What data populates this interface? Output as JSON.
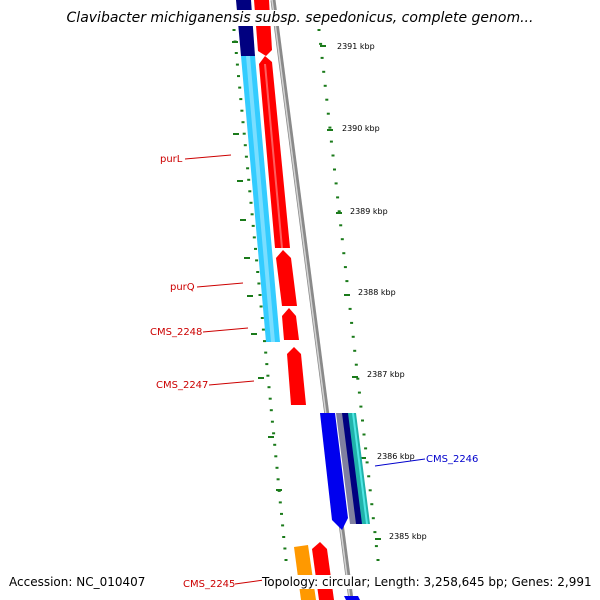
{
  "title": "Clavibacter michiganensis subsp. sepedonicus, complete genom...",
  "footer": {
    "accession": "Accession: NC_010407",
    "summary": "Topology: circular; Length: 3,258,645 bp; Genes: 2,991"
  },
  "ticks": [
    "2391 kbp",
    "2390 kbp",
    "2389 kbp",
    "2388 kbp",
    "2387 kbp",
    "2386 kbp",
    "2385 kbp"
  ],
  "genes": [
    {
      "name": "purL",
      "color": "#cc0000"
    },
    {
      "name": "purQ",
      "color": "#cc0000"
    },
    {
      "name": "CMS_2248",
      "color": "#cc0000"
    },
    {
      "name": "CMS_2247",
      "color": "#cc0000"
    },
    {
      "name": "CMS_2246",
      "color": "#0000cc"
    },
    {
      "name": "CMS_2245",
      "color": "#cc0000"
    }
  ],
  "colors": {
    "cds": "#ff0000",
    "cyan_track": "#33ccff",
    "navy_track": "#000080",
    "blue_track": "#0000ee",
    "orange_track": "#ff9900",
    "backbone": "#8a8a8a",
    "tick": "#1a7a1a"
  }
}
